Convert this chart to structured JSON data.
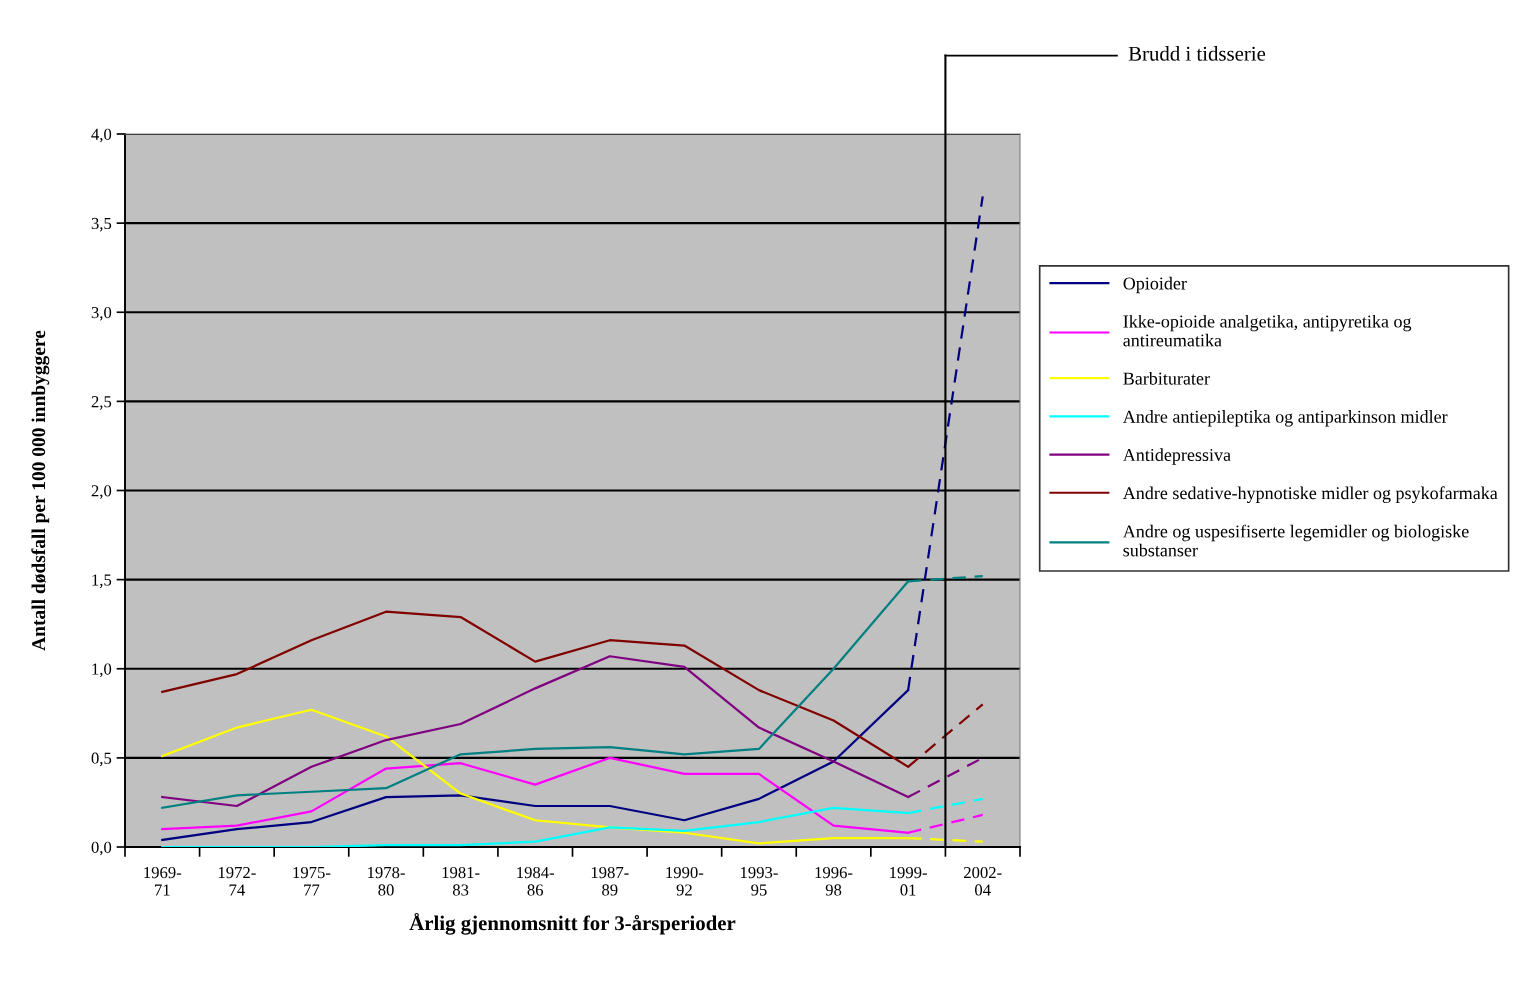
{
  "chart_data": {
    "type": "line",
    "xlabel": "Årlig gjennomsnitt for 3-årsperioder",
    "ylabel": "Antall dødsfall per 100 000 innbyggere",
    "categories": [
      "1969-\n71",
      "1972-\n74",
      "1975-\n77",
      "1978-\n80",
      "1981-\n83",
      "1984-\n86",
      "1987-\n89",
      "1990-\n92",
      "1993-\n95",
      "1996-\n98",
      "1999-\n01",
      "2002-\n04"
    ],
    "series": [
      {
        "name": "Opioider",
        "color": "#000080",
        "values": [
          0.04,
          0.1,
          0.14,
          0.28,
          0.29,
          0.23,
          0.23,
          0.15,
          0.27,
          0.48,
          0.88,
          null
        ]
      },
      {
        "name": "Ikke-opioide analgetika, antipyretika og\nantireumatika",
        "color": "#ff00ff",
        "values": [
          0.1,
          0.12,
          0.2,
          0.44,
          0.47,
          0.35,
          0.5,
          0.41,
          0.41,
          0.12,
          0.08,
          null
        ]
      },
      {
        "name": "Barbiturater",
        "color": "#ffff00",
        "values": [
          0.51,
          0.67,
          0.77,
          0.62,
          0.3,
          0.15,
          0.11,
          0.08,
          0.02,
          0.05,
          0.05,
          null
        ]
      },
      {
        "name": "Andre antiepileptika og antiparkinson midler",
        "color": "#00ffff",
        "values": [
          0.0,
          0.0,
          0.0,
          0.01,
          0.01,
          0.03,
          0.11,
          0.09,
          0.14,
          0.22,
          0.19,
          null
        ]
      },
      {
        "name": "Antidepressiva",
        "color": "#800080",
        "values": [
          0.28,
          0.23,
          0.45,
          0.6,
          0.69,
          0.89,
          1.07,
          1.01,
          0.67,
          0.48,
          0.28,
          null
        ]
      },
      {
        "name": "Andre sedative-hypnotiske midler og psykofarmaka",
        "color": "#800000",
        "values": [
          0.87,
          0.97,
          1.16,
          1.32,
          1.29,
          1.04,
          1.16,
          1.13,
          0.88,
          0.71,
          0.45,
          null
        ]
      },
      {
        "name": "Andre og uspesifiserte legemidler og biologiske\nsubstanser",
        "color": "#008080",
        "values": [
          0.22,
          0.29,
          0.31,
          0.33,
          0.52,
          0.55,
          0.56,
          0.52,
          0.55,
          1.0,
          1.49,
          null
        ]
      },
      {
        "color": "#000080",
        "line_style": "dashed",
        "values": [
          null,
          null,
          null,
          null,
          null,
          null,
          null,
          null,
          null,
          null,
          0.88,
          3.65
        ]
      },
      {
        "color": "#ff00ff",
        "line_style": "dashed",
        "values": [
          null,
          null,
          null,
          null,
          null,
          null,
          null,
          null,
          null,
          null,
          0.08,
          0.18
        ]
      },
      {
        "color": "#ffff00",
        "line_style": "dashed",
        "values": [
          null,
          null,
          null,
          null,
          null,
          null,
          null,
          null,
          null,
          null,
          0.05,
          0.03
        ]
      },
      {
        "color": "#00ffff",
        "line_style": "dashed",
        "values": [
          null,
          null,
          null,
          null,
          null,
          null,
          null,
          null,
          null,
          null,
          0.19,
          0.27
        ]
      },
      {
        "color": "#800080",
        "line_style": "dashed",
        "values": [
          null,
          null,
          null,
          null,
          null,
          null,
          null,
          null,
          null,
          null,
          0.28,
          0.5
        ]
      },
      {
        "color": "#800000",
        "line_style": "dashed",
        "values": [
          null,
          null,
          null,
          null,
          null,
          null,
          null,
          null,
          null,
          null,
          0.45,
          0.8
        ]
      },
      {
        "color": "#008080",
        "line_style": "dashed",
        "values": [
          null,
          null,
          null,
          null,
          null,
          null,
          null,
          null,
          null,
          null,
          1.49,
          1.52
        ]
      }
    ],
    "ylim": [
      0,
      4
    ],
    "yticks": [
      {
        "value": 0,
        "label": "0,0"
      },
      {
        "value": 0.5,
        "label": "0,5"
      },
      {
        "value": 1,
        "label": "1,0"
      },
      {
        "value": 1.5,
        "label": "1,5"
      },
      {
        "value": 2,
        "label": "2,0"
      },
      {
        "value": 2.5,
        "label": "2,5"
      },
      {
        "value": 3,
        "label": "3,0"
      },
      {
        "value": 3.5,
        "label": "3,5"
      },
      {
        "value": 4,
        "label": "4,0"
      }
    ],
    "grid": "y",
    "legend": "right",
    "line_style": "solid",
    "annotations": [
      "Brudd i tidsserie"
    ]
  }
}
